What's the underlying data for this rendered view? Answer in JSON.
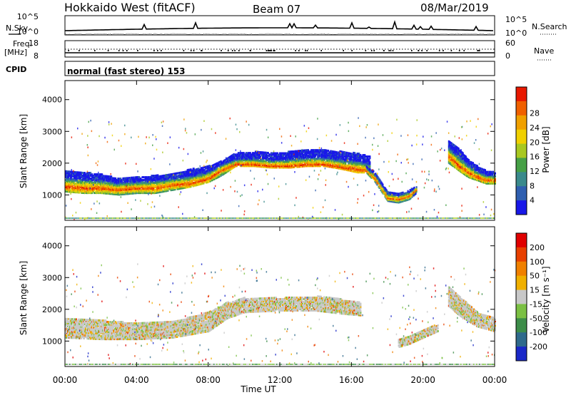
{
  "header": {
    "radar": "Hokkaido West (fitACF)",
    "beam": "Beam 07",
    "date": "08/Mar/2019"
  },
  "top_panels": {
    "nsky_label": "N.Sky",
    "nsky_ticks": [
      "10^5",
      "10^0"
    ],
    "nsearch_label": "N.Search",
    "nsearch_ticks": [
      "10^5",
      "10^0"
    ],
    "freq_label": [
      "Freq.",
      "[MHz]"
    ],
    "freq_ticks": [
      "18",
      "8"
    ],
    "nave_label": "Nave",
    "nave_ticks": [
      "60",
      "0"
    ],
    "cpid_label": "CPID",
    "cpid_text": "normal (fast stereo) 153"
  },
  "chart_data": [
    {
      "type": "heatmap",
      "name": "power",
      "ylabel": "Slant Range [km]",
      "yticks": [
        "1000",
        "2000",
        "3000",
        "4000"
      ],
      "ylim": [
        200,
        4600
      ],
      "xlim": [
        0,
        24
      ],
      "colorbar_label": "Power [dB]",
      "colorbar_ticks": [
        "4",
        "8",
        "12",
        "16",
        "20",
        "24",
        "28"
      ],
      "colorbar_colors": [
        "#1818e8",
        "#2f5fb0",
        "#3a8a8c",
        "#46a046",
        "#a8c820",
        "#f0d000",
        "#f0a000",
        "#f06000",
        "#e81800"
      ],
      "bands": [
        {
          "t": [
            0,
            1,
            2,
            3,
            4,
            5,
            6,
            7,
            8,
            8.7,
            9.5,
            10.5,
            11.5,
            12.5,
            13.5,
            14.5,
            15.5,
            16.3,
            17
          ],
          "lo": [
            1100,
            1050,
            1050,
            1000,
            1050,
            1050,
            1150,
            1250,
            1400,
            1600,
            1900,
            1900,
            1850,
            1850,
            1900,
            1900,
            1800,
            1700,
            1700
          ],
          "hi": [
            1750,
            1700,
            1650,
            1500,
            1550,
            1600,
            1650,
            1800,
            1900,
            2050,
            2300,
            2350,
            2300,
            2350,
            2400,
            2400,
            2350,
            2300,
            2200
          ],
          "core": [
            1250,
            1200,
            1200,
            1150,
            1200,
            1200,
            1300,
            1350,
            1500,
            1750,
            1950,
            1950,
            1900,
            1900,
            1950,
            1950,
            1850,
            1800,
            1750
          ]
        },
        {
          "t": [
            21.4,
            22,
            22.5,
            23,
            23.5,
            24
          ],
          "lo": [
            2000,
            1750,
            1550,
            1450,
            1350,
            1350
          ],
          "hi": [
            2700,
            2450,
            2100,
            1900,
            1750,
            1700
          ],
          "core": [
            2200,
            1900,
            1700,
            1550,
            1450,
            1450
          ]
        },
        {
          "t": [
            16.8,
            17.3,
            18,
            18.6,
            19.2,
            19.6
          ],
          "lo": [
            1700,
            1400,
            800,
            750,
            850,
            1050
          ],
          "hi": [
            1900,
            1700,
            1100,
            1050,
            1150,
            1250
          ],
          "core": [
            1750,
            1500,
            900,
            850,
            950,
            1150
          ]
        }
      ]
    },
    {
      "type": "heatmap",
      "name": "velocity",
      "ylabel": "Slant Range [km]",
      "yticks": [
        "1000",
        "2000",
        "3000",
        "4000"
      ],
      "ylim": [
        200,
        4600
      ],
      "xlim": [
        0,
        24
      ],
      "xticks": [
        "00:00",
        "04:00",
        "08:00",
        "12:00",
        "16:00",
        "20:00",
        "00:00"
      ],
      "xlabel": "Time UT",
      "colorbar_label": "Velocity [m s⁻¹]",
      "colorbar_ticks": [
        "200",
        "100",
        "50",
        "15",
        "-15",
        "-50",
        "-100",
        "-200"
      ],
      "colorbar_colors": [
        "#1a28c8",
        "#2f6a8c",
        "#3d8d49",
        "#7bc043",
        "#c8c8c8",
        "#f0b000",
        "#f08000",
        "#e84000",
        "#e00000"
      ],
      "bands": [
        {
          "t": [
            0,
            2,
            4,
            6,
            8,
            9,
            10,
            12,
            14,
            15.5,
            16.5
          ],
          "lo": [
            1100,
            1050,
            1050,
            1100,
            1300,
            1700,
            1900,
            1950,
            1950,
            1850,
            1800
          ],
          "hi": [
            1700,
            1650,
            1550,
            1600,
            1900,
            2200,
            2350,
            2350,
            2400,
            2300,
            2200
          ],
          "core": [
            1300,
            1300,
            1250,
            1350,
            1500,
            1850,
            2000,
            2050,
            2100,
            1950,
            1900
          ]
        },
        {
          "t": [
            21.4,
            22,
            23,
            24
          ],
          "lo": [
            2100,
            1800,
            1450,
            1300
          ],
          "hi": [
            2700,
            2400,
            1900,
            1700
          ],
          "core": [
            2300,
            2000,
            1600,
            1450
          ]
        },
        {
          "t": [
            18.6,
            19.2,
            19.8,
            20.4,
            20.8
          ],
          "lo": [
            800,
            900,
            1050,
            1200,
            1300
          ],
          "hi": [
            1050,
            1150,
            1300,
            1450,
            1500
          ],
          "core": [
            900,
            1000,
            1150,
            1300,
            1400
          ]
        }
      ]
    }
  ]
}
